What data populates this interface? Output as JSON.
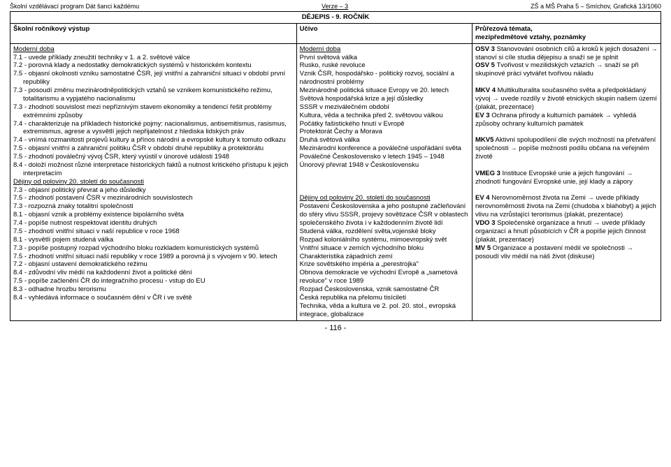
{
  "doc_header": {
    "left": "Školní vzdělávací program Dát šanci každému",
    "mid": "Verze – 3",
    "right": "ZŠ a MŠ Praha 5 – Smíchov, Grafická 13/1060"
  },
  "table_title": "DĚJEPIS - 9. ROČNÍK",
  "columns": {
    "c1": "Školní ročníkový výstup",
    "c2": "Učivo",
    "c3_line1": "Průřezová témata,",
    "c3_line2": "mezipředmětové vztahy, poznámky"
  },
  "col1": [
    {
      "t": "Moderní doba",
      "cls": "u"
    },
    {
      "t": "7.1 - uvede příklady zneužití techniky v 1. a 2. světové válce",
      "cls": "indent"
    },
    {
      "t": "7.2 - porovná klady a nedostatky demokratických systémů v historickém kontextu",
      "cls": "indent"
    },
    {
      "t": "7.5 - objasní okolnosti vzniku samostatné ČSR, její vnitřní a zahraniční situaci v období první republiky",
      "cls": "indent"
    },
    {
      "t": "7.3 - posoudí změnu mezinárodněpolitických vztahů se vznikem komunistického režimu, totalitarismu a vypjatého nacionalismu",
      "cls": "indent"
    },
    {
      "t": "7.3 - zhodnotí souvislost mezi nepříznivým stavem ekonomiky a tendencí řešit problémy extrémními způsoby",
      "cls": "indent"
    },
    {
      "t": "7.4 - charakterizuje na příkladech historické pojmy: nacionalismus, antisemitismus, rasismus, extremismus, agrese a vysvětlí jejich nepřijatelnost z hlediska lidských práv",
      "cls": "indent"
    },
    {
      "t": "7.4 - vnímá rozmanitosti projevů kultury a přínos národní a evropské kultury k tomuto odkazu",
      "cls": "indent"
    },
    {
      "t": "7.5 - objasní vnitřní a zahraniční politiku ČSR v období druhé republiky a protektorátu",
      "cls": "indent"
    },
    {
      "t": "7.5 - zhodnotí poválečný vývoj ČSR, který vyústil v únorové události 1948",
      "cls": "indent"
    },
    {
      "t": "8.4 - doloží možnost různé interpretace historických faktů a nutnost kritického přístupu k jejich interpretacím",
      "cls": "indent"
    },
    {
      "t": "Dějiny od poloviny 20. století do současnosti",
      "cls": "u"
    },
    {
      "t": "7.3 - objasní politický převrat a jeho důsledky",
      "cls": "indent"
    },
    {
      "t": "7.5 - zhodnotí postavení ČSR v mezinárodních souvislostech",
      "cls": "indent"
    },
    {
      "t": "7.3 - rozpozná znaky totalitní společnosti",
      "cls": "indent"
    },
    {
      "t": "8.1 - objasní vznik a problémy existence bipolárního světa",
      "cls": "indent"
    },
    {
      "t": "7.4 - popíše nutnost respektovat identitu druhých",
      "cls": "indent"
    },
    {
      "t": "7.5 - zhodnotí vnitřní situaci v naší republice v roce 1968",
      "cls": "indent"
    },
    {
      "t": "8.1 - vysvětlí pojem studená válka",
      "cls": "indent"
    },
    {
      "t": "7.3 - popíše postupný rozpad východního bloku rozkladem komunistických systémů",
      "cls": "indent"
    },
    {
      "t": "7.5 - zhodnotí vnitřní situaci naší republiky v roce 1989 a porovná ji s vývojem v 90. letech",
      "cls": "indent"
    },
    {
      "t": "7.2 - objasní ustavení demokratického režimu",
      "cls": "indent"
    },
    {
      "t": "8.4 - zdůvodní vliv médií na každodenní život a politické dění",
      "cls": "indent"
    },
    {
      "t": "7.5 - popíše začlenění ČR do integračního procesu - vstup do EU",
      "cls": "indent"
    },
    {
      "t": "8.3 - odhadne hrozbu terorismu",
      "cls": "indent"
    },
    {
      "t": "8.4 - vyhledává informace o současném dění v ČR i ve světě",
      "cls": "indent"
    }
  ],
  "col2": [
    {
      "t": "Moderní doba",
      "cls": "u"
    },
    {
      "t": "První světová válka"
    },
    {
      "t": "Rusko, ruské revoluce"
    },
    {
      "t": "Vznik ČSR, hospodářsko - politický rozvoj, sociální a národnostní problémy"
    },
    {
      "t": "Mezinárodně politická situace Evropy ve 20. letech"
    },
    {
      "t": "Světová hospodářská krize a její důsledky"
    },
    {
      "t": "SSSR v meziválečném období"
    },
    {
      "t": "Kultura, věda a technika před 2. světovou válkou"
    },
    {
      "t": "Počátky fašistického hnutí v Evropě"
    },
    {
      "t": "Protektorát Čechy a Morava"
    },
    {
      "t": "Druhá světová válka"
    },
    {
      "t": "Mezinárodní konference a poválečné uspořádání světa"
    },
    {
      "t": "Poválečné Československo v letech 1945 – 1948"
    },
    {
      "t": "Únorový převrat 1948 v Československu"
    },
    {
      "t": "",
      "cls": "spacer"
    },
    {
      "t": "",
      "cls": "spacer"
    },
    {
      "t": "",
      "cls": "spacer"
    },
    {
      "t": "Dějiny od poloviny 20. století do současnosti",
      "cls": "u"
    },
    {
      "t": "Postavení Československa a jeho postupné začleňování do sféry vlivu SSSR, projevy sovětizace ČSR v oblastech společenského života i v každodenním životě lidí"
    },
    {
      "t": "Studená válka, rozdělení světa,vojenské bloky"
    },
    {
      "t": "Rozpad koloniálního systému, mimoevropský svět"
    },
    {
      "t": "Vnitřní situace v zemích východního bloku"
    },
    {
      "t": "Charakteristika západních zemí"
    },
    {
      "t": "Krize sovětského impéria a „perestrojka\""
    },
    {
      "t": "Obnova demokracie ve východní Evropě a „sametová revoluce\" v roce 1989"
    },
    {
      "t": "Rozpad Československa, vznik samostatné ČR"
    },
    {
      "t": "Česká republika na přelomu tisíciletí"
    },
    {
      "t": "Technika, věda a kultura ve 2. pol. 20. stol., evropská integrace, globalizace"
    }
  ],
  "col3": [
    {
      "pre": "OSV 3",
      "t": " Stanovování osobních cílů a kroků k jejich dosažení → stanoví si cíle studia dějepisu a snaží se je splnit"
    },
    {
      "pre": "OSV 5",
      "t": " Tvořivost v mezilidských vztazích → snaží se při skupinové práci vytvářet tvořivou náladu"
    },
    {
      "t": "",
      "cls": "blank"
    },
    {
      "pre": "MKV 4",
      "t": " Multikulturalita současného světa a předpokládaný vývoj → uvede rozdíly v životě etnických skupin našem území (plakát, prezentace)"
    },
    {
      "pre": "EV 3",
      "t": " Ochrana přírody a kulturních památek → vyhledá způsoby ochrany kulturních památek"
    },
    {
      "t": "",
      "cls": "blank"
    },
    {
      "pre": "MKV5",
      "t": " Aktivní spolupodílení dle svých možností na přetváření společnosti → popíše možnosti podílu občana na veřejném životě"
    },
    {
      "t": "",
      "cls": "blank"
    },
    {
      "pre": "VMEG 3",
      "t": " Instituce Evropské unie a jejich fungování → zhodnotí fungování Evropské unie, její klady a zápory"
    },
    {
      "t": "",
      "cls": "blank"
    },
    {
      "pre": "EV 4",
      "t": " Nerovnoměrnost života na Zemi → uvede příklady nerovnoměrnosti života na Zemi (chudoba x blahobyt) a jejich vlivu na vzrůstající terorismus (plakát, prezentace)"
    },
    {
      "pre": "VDO 3",
      "t": " Společenské organizace a hnutí → uvede příklady organizací a hnutí působících v ČR a popíše jejich činnost (plakát, prezentace)"
    },
    {
      "pre": "MV 5",
      "t": " Organizace a postavení médií ve společnosti → posoudí vliv médií na náš život (diskuse)"
    }
  ],
  "page_number": "- 116 -"
}
